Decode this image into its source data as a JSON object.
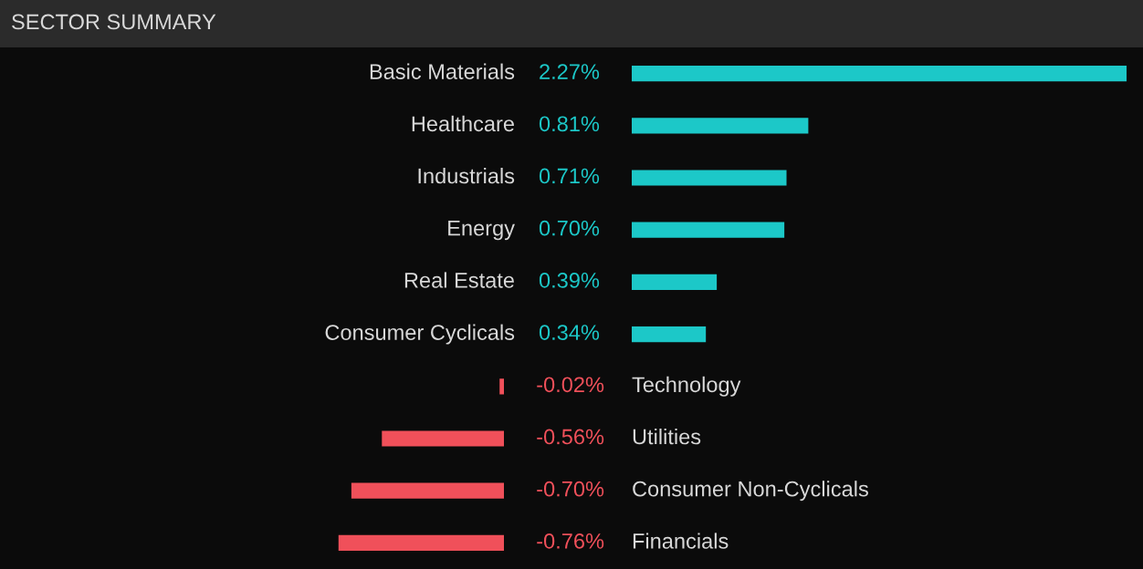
{
  "chart_data": [
    {
      "type": "bar",
      "orientation": "horizontal",
      "title": "SECTOR SUMMARY",
      "categories": [
        "Basic Materials",
        "Healthcare",
        "Industrials",
        "Energy",
        "Real Estate",
        "Consumer Cyclicals"
      ],
      "values": [
        2.27,
        0.81,
        0.71,
        0.7,
        0.39,
        0.34
      ],
      "value_labels": [
        "2.27%",
        "0.81%",
        "0.71%",
        "0.70%",
        "0.39%",
        "0.34%"
      ],
      "colors": [
        "#1cc8c8",
        "#1cc8c8",
        "#1cc8c8",
        "#1cc8c8",
        "#1cc8c8",
        "#1cc8c8"
      ]
    },
    {
      "type": "bar",
      "orientation": "horizontal",
      "categories": [
        "Technology",
        "Utilities",
        "Consumer Non-Cyclicals",
        "Financials"
      ],
      "values": [
        -0.02,
        -0.56,
        -0.7,
        -0.76
      ],
      "value_labels": [
        "-0.02%",
        "-0.56%",
        "-0.70%",
        "-0.76%"
      ],
      "colors": [
        "#f0505a",
        "#f0505a",
        "#f0505a",
        "#f0505a"
      ]
    }
  ]
}
